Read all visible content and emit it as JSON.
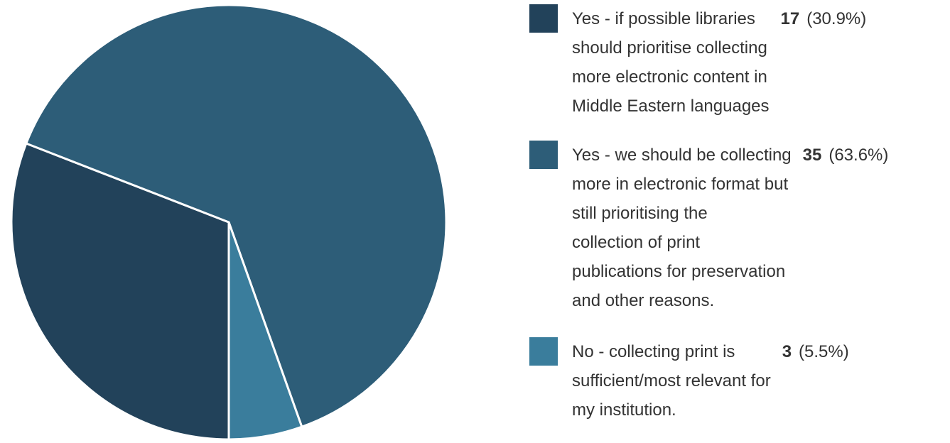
{
  "chart_data": {
    "type": "pie",
    "slices": [
      {
        "label_lines": [
          "Yes - if possible libraries",
          "should prioritise collecting",
          "more electronic content in",
          "Middle Eastern languages"
        ],
        "label": "Yes - if possible libraries should prioritise collecting more electronic content in Middle Eastern languages",
        "value": 17,
        "percent_text": "(30.9%)",
        "color": "#22425a"
      },
      {
        "label_lines": [
          "Yes - we should be collecting",
          "more in electronic format but",
          "still prioritising the",
          "collection of print",
          "publications for preservation",
          "and other reasons."
        ],
        "label": "Yes - we should be collecting more in electronic format but still prioritising the collection of print publications for preservation and other reasons.",
        "value": 35,
        "percent_text": "(63.6%)",
        "color": "#2d5d78"
      },
      {
        "label_lines": [
          "No - collecting print is",
          "sufficient/most relevant for",
          "my institution."
        ],
        "label": "No - collecting print is sufficient/most relevant for my institution.",
        "value": 3,
        "percent_text": "(5.5%)",
        "color": "#3a7d9c"
      }
    ],
    "start_angle_deg": 90,
    "direction": "clockwise",
    "legend_position": "right",
    "slice_border_color": "#ffffff"
  }
}
